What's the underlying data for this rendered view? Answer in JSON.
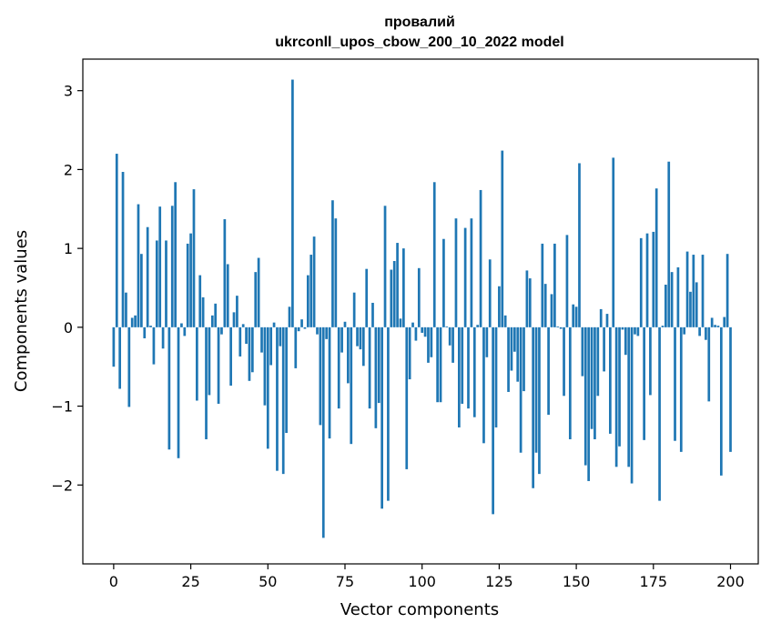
{
  "chart_data": {
    "type": "bar",
    "title": "провалий",
    "subtitle": "ukrconll_upos_cbow_200_10_2022 model",
    "xlabel": "Vector components",
    "ylabel": "Components values",
    "xlim": [
      -10,
      209
    ],
    "ylim": [
      -3.0,
      3.4
    ],
    "xticks": [
      0,
      25,
      50,
      75,
      100,
      125,
      150,
      175,
      200
    ],
    "xtick_labels": [
      "0",
      "25",
      "50",
      "75",
      "100",
      "125",
      "150",
      "175",
      "200"
    ],
    "yticks": [
      -2,
      -1,
      0,
      1,
      2,
      3
    ],
    "ytick_labels": [
      "−2",
      "−1",
      "0",
      "1",
      "2",
      "3"
    ],
    "grid": false,
    "bar_color": "#1f77b4",
    "values": [
      -0.5,
      2.2,
      -0.78,
      1.97,
      0.44,
      -1.01,
      0.12,
      0.15,
      1.56,
      0.93,
      -0.14,
      1.27,
      0.02,
      -0.47,
      1.1,
      1.53,
      -0.27,
      1.1,
      -1.55,
      1.54,
      1.84,
      -1.66,
      0.05,
      -0.11,
      1.06,
      1.19,
      1.75,
      -0.93,
      0.66,
      0.38,
      -1.42,
      -0.86,
      0.15,
      0.3,
      -0.97,
      -0.09,
      1.37,
      0.8,
      -0.74,
      0.19,
      0.4,
      -0.37,
      0.04,
      -0.21,
      -0.68,
      -0.57,
      0.7,
      0.88,
      -0.32,
      -0.99,
      -1.54,
      -0.48,
      0.06,
      -1.82,
      -0.24,
      -1.86,
      -1.34,
      0.26,
      3.14,
      -0.52,
      -0.05,
      0.1,
      -0.02,
      0.66,
      0.92,
      1.15,
      -0.09,
      -1.24,
      -2.67,
      -0.15,
      -1.41,
      1.61,
      1.38,
      -1.03,
      -0.32,
      0.07,
      -0.71,
      -1.48,
      0.44,
      -0.24,
      -0.28,
      -0.49,
      0.74,
      -1.03,
      0.31,
      -1.28,
      -0.96,
      -2.3,
      1.54,
      -2.2,
      0.73,
      0.84,
      1.07,
      0.11,
      1.0,
      -1.8,
      -0.66,
      0.06,
      -0.17,
      0.75,
      -0.07,
      -0.12,
      -0.45,
      -0.38,
      1.84,
      -0.95,
      -0.95,
      1.12,
      0.01,
      -0.23,
      -0.45,
      1.38,
      -1.27,
      -0.97,
      1.26,
      -1.03,
      1.38,
      -1.14,
      0.03,
      1.74,
      -1.47,
      -0.38,
      0.86,
      -2.37,
      -1.27,
      0.52,
      2.24,
      0.15,
      -0.82,
      -0.55,
      -0.31,
      -0.69,
      -1.59,
      -0.81,
      0.72,
      0.62,
      -2.04,
      -1.59,
      -1.86,
      1.06,
      0.55,
      -1.11,
      0.42,
      1.06,
      0.01,
      -0.02,
      -0.87,
      1.17,
      -1.42,
      0.29,
      0.26,
      2.08,
      -0.62,
      -1.75,
      -1.95,
      -1.29,
      -1.42,
      -0.87,
      0.23,
      -0.56,
      0.17,
      -1.35,
      2.15,
      -1.77,
      -1.51,
      -0.03,
      -0.35,
      -1.77,
      -1.98,
      -0.09,
      -0.11,
      1.13,
      -1.43,
      1.19,
      -0.86,
      1.21,
      1.76,
      -2.2,
      0.02,
      0.54,
      2.1,
      0.7,
      -1.44,
      0.76,
      -1.58,
      -0.09,
      0.96,
      0.45,
      0.92,
      0.57,
      -0.11,
      0.92,
      -0.16,
      -0.94,
      0.12,
      0.03,
      0.02,
      -1.88,
      0.13,
      0.93,
      -1.58
    ]
  }
}
